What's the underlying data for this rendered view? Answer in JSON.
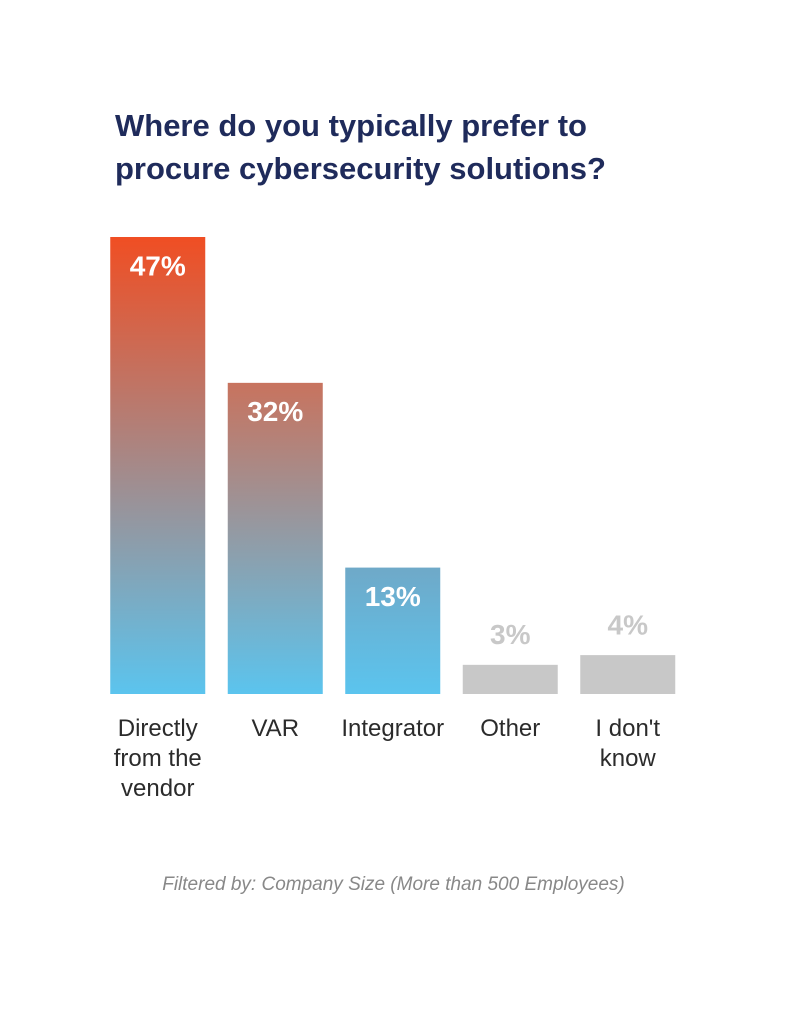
{
  "chart_data": {
    "type": "bar",
    "title": "Where do you typically prefer to procure cybersecurity solutions?",
    "categories": [
      "Directly from the vendor",
      "VAR",
      "Integrator",
      "Other",
      "I don't know"
    ],
    "values": [
      47,
      32,
      13,
      3,
      4
    ],
    "value_labels": [
      "47%",
      "32%",
      "13%",
      "3%",
      "4%"
    ],
    "colors": [
      "#f04e23",
      "#c8735e",
      "#6fa9c8",
      "#c8c8c8",
      "#c8c8c8"
    ],
    "bottom_colors": [
      "#5bc4ee",
      "#5bc4ee",
      "#5bc4ee",
      "#c8c8c8",
      "#c8c8c8"
    ],
    "footnote": "Filtered by: Company Size (More than 500 Employees)"
  }
}
